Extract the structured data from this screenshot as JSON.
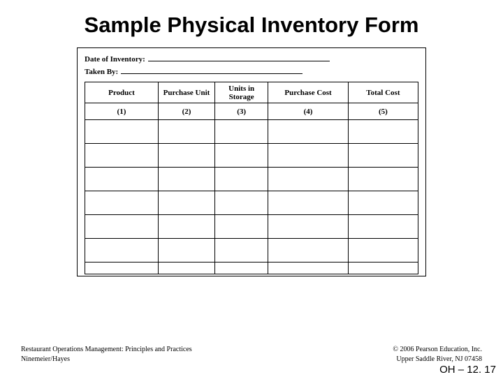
{
  "title": "Sample Physical Inventory Form",
  "meta": {
    "date_label": "Date of Inventory:",
    "taken_label": "Taken By:"
  },
  "table": {
    "columns": [
      {
        "label": "Product",
        "width_class": "col-product"
      },
      {
        "label": "Purchase Unit",
        "width_class": "col-punit"
      },
      {
        "label": "Units in Storage",
        "width_class": "col-units"
      },
      {
        "label": "Purchase Cost",
        "width_class": "col-pcost"
      },
      {
        "label": "Total Cost",
        "width_class": "col-tcost"
      }
    ],
    "number_row": [
      "(1)",
      "(2)",
      "(3)",
      "(4)",
      "(5)"
    ],
    "empty_rows": 7
  },
  "footer": {
    "left1": "Restaurant Operations Management: Principles and Practices",
    "right1": "© 2006 Pearson Education, Inc.",
    "left2": "Ninemeier/Hayes",
    "right2": "Upper Saddle River, NJ 07458"
  },
  "slide_ref": "OH – 12. 17"
}
